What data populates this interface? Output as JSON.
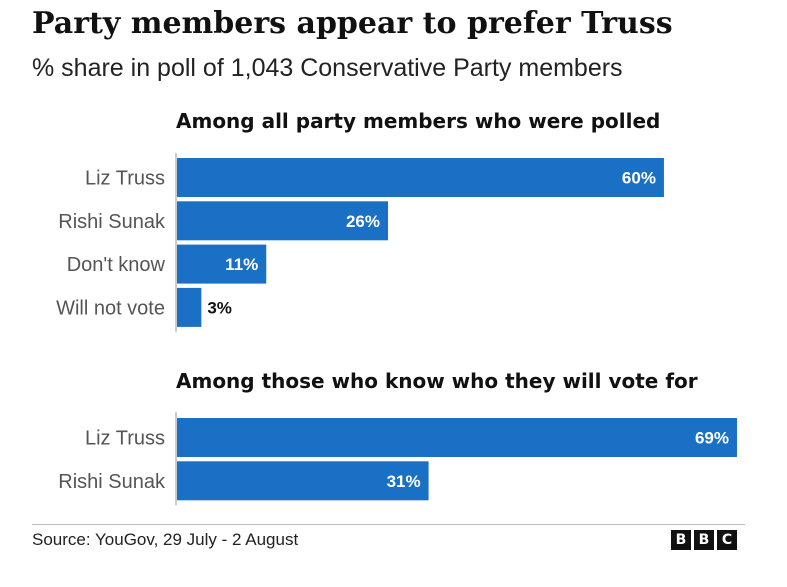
{
  "header": {
    "title": "Party members appear to prefer Truss",
    "subtitle": "% share in poll of 1,043 Conservative Party members"
  },
  "colors": {
    "bar": "#1a70c4",
    "label_outside": "#111111",
    "label_inside": "#ffffff"
  },
  "chart_data": [
    {
      "type": "bar",
      "orientation": "horizontal",
      "title": "Among all party members who were polled",
      "categories": [
        "Liz Truss",
        "Rishi Sunak",
        "Don't know",
        "Will not vote"
      ],
      "values": [
        60,
        26,
        11,
        3
      ],
      "value_labels": [
        "60%",
        "26%",
        "11%",
        "3%"
      ],
      "xlim": [
        0,
        69
      ],
      "grid": false
    },
    {
      "type": "bar",
      "orientation": "horizontal",
      "title": "Among those who know who they will vote for",
      "categories": [
        "Liz Truss",
        "Rishi Sunak"
      ],
      "values": [
        69,
        31
      ],
      "value_labels": [
        "69%",
        "31%"
      ],
      "xlim": [
        0,
        69
      ],
      "grid": false
    }
  ],
  "footer": {
    "source": "Source: YouGov, 29 July - 2 August",
    "logo_letters": [
      "B",
      "B",
      "C"
    ]
  }
}
